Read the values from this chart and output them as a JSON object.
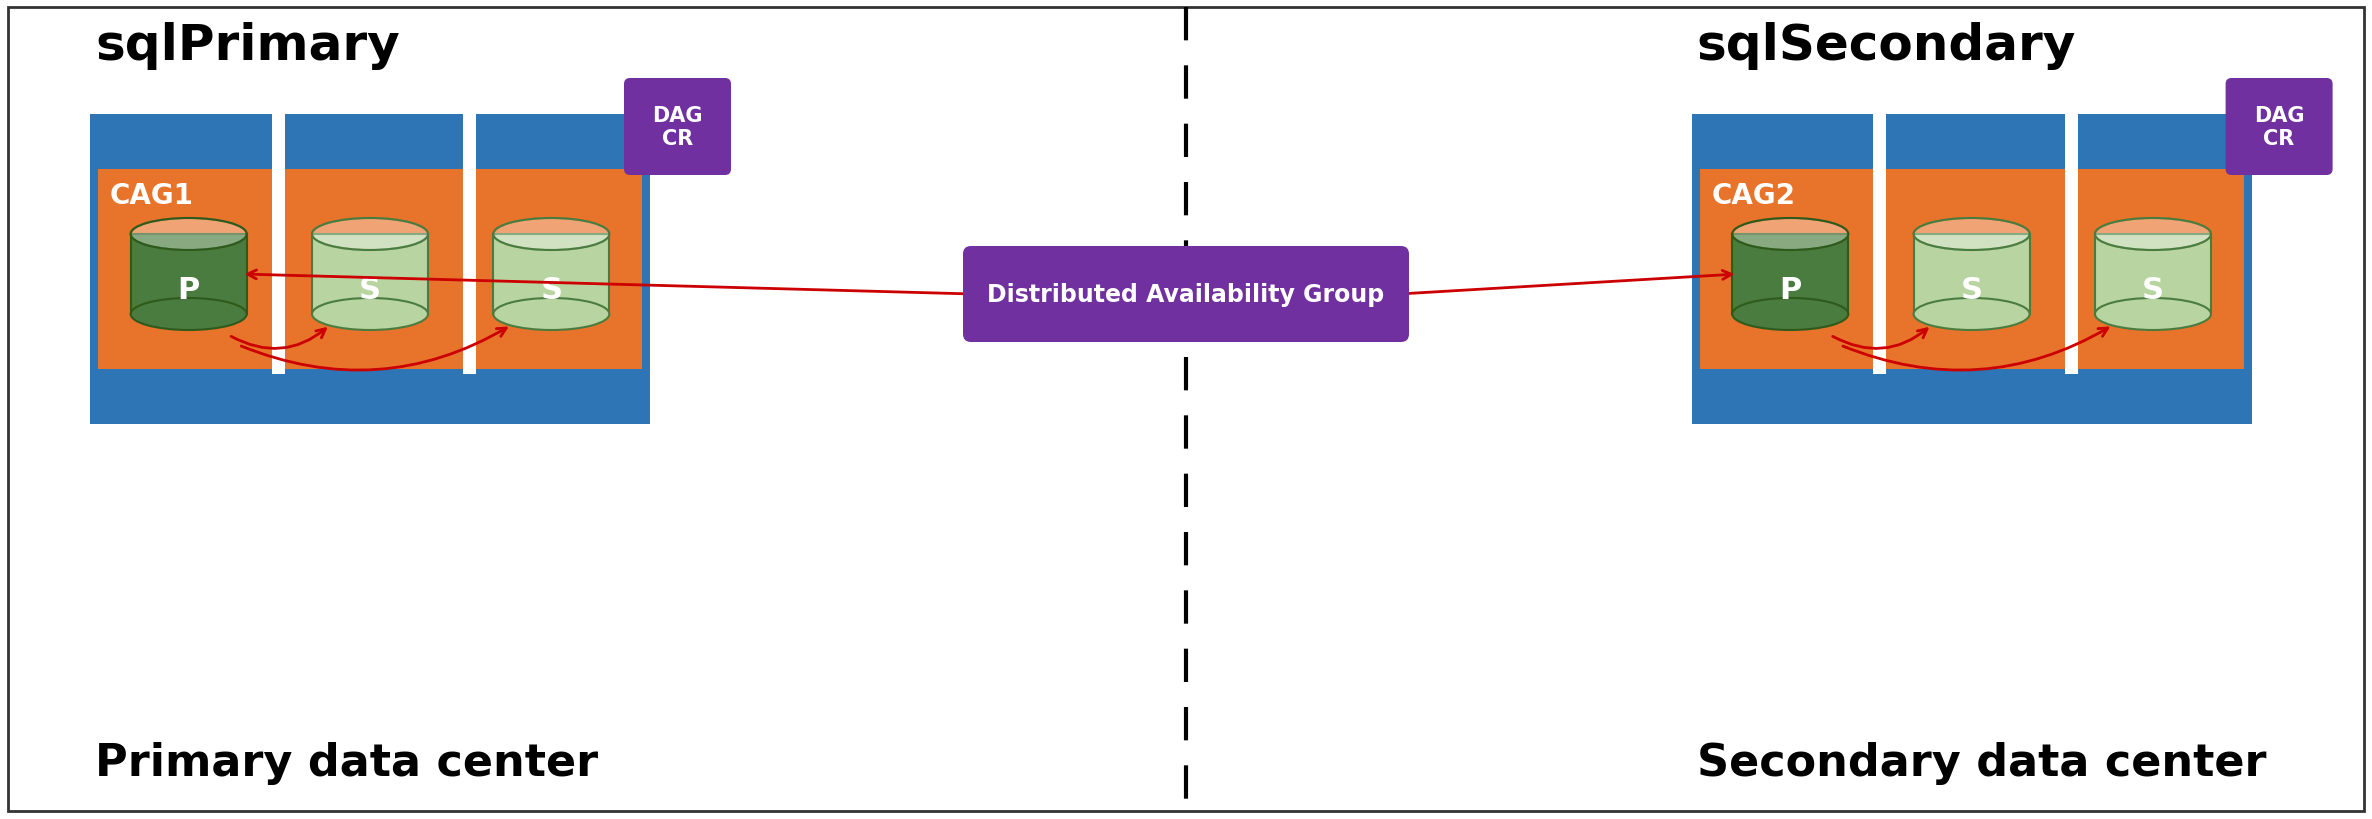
{
  "bg_color": "#ffffff",
  "border_color": "#333333",
  "blue_color": "#2E75B6",
  "orange_color": "#E8732A",
  "purple_color": "#7030A0",
  "green_dark": "#4A7C3F",
  "green_dark_edge": "#2E5A1C",
  "green_light": "#B8D4A0",
  "green_light_edge": "#4A7C3F",
  "red_color": "#CC0000",
  "white_color": "#ffffff",
  "black_color": "#000000",
  "left_title": "sqlPrimary",
  "right_title": "sqlSecondary",
  "left_cag": "CAG1",
  "right_cag": "CAG2",
  "dag_label": "DAG\nCR",
  "dag_box_label": "Distributed Availability Group",
  "left_dc_label": "Primary data center",
  "right_dc_label": "Secondary data center",
  "primary_label": "P",
  "secondary_label": "S",
  "fig_w": 23.72,
  "fig_h": 8.2,
  "dpi": 100
}
